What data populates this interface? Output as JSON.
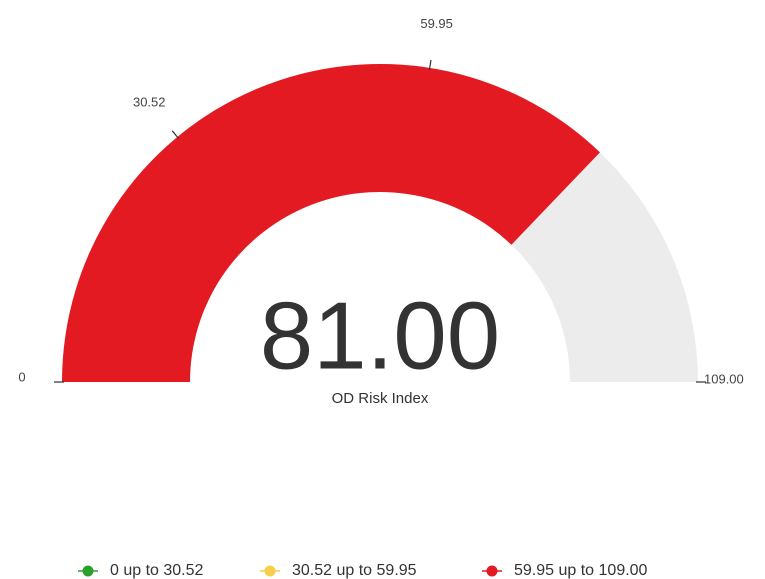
{
  "chart_data": {
    "type": "gauge",
    "value": 81,
    "value_label": "81.00",
    "label": "OD Risk Index",
    "ylim": [
      0,
      109
    ],
    "yticks": [
      0,
      30.52,
      59.95,
      {
        "value": 109,
        "label": "109.00"
      }
    ],
    "track_color": "#ececec",
    "bands": [
      {
        "name": "0 up to 30.52",
        "color": "#2ca02c",
        "from": 0,
        "to": 30.52
      },
      {
        "name": "30.52 up to 59.95",
        "color": "#f7cf4a",
        "from": 30.52,
        "to": 59.95
      },
      {
        "name": "59.95 up to 109.00",
        "color": "#e31a22",
        "from": 59.95,
        "to": 109
      }
    ]
  }
}
